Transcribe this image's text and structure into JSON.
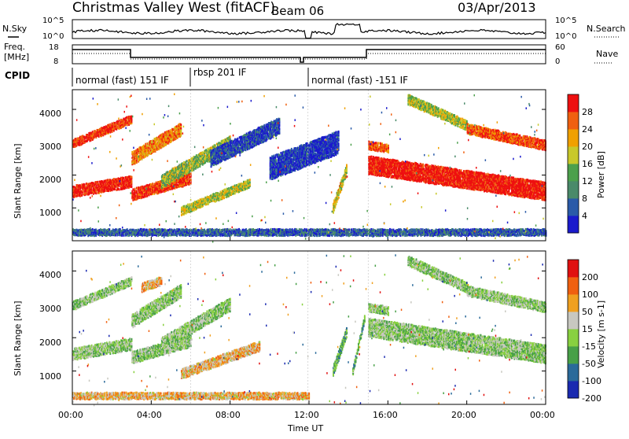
{
  "header": {
    "title": "Christmas Valley West (fitACF)",
    "beam": "Beam 06",
    "date": "03/Apr/2013"
  },
  "strip": {
    "nsky_label": "N.Sky",
    "nsky_tick_top": "10^5",
    "nsky_tick_bottom": "10^0",
    "nsearch_label": "N.Search",
    "freq_label_line1": "Freq.",
    "freq_label_line2": "[MHz]",
    "freq_tick_top": "18",
    "freq_tick_bottom": "8",
    "nave_label": "Nave",
    "nave_tick_top": "60",
    "nave_tick_bottom": "0",
    "cpid_label": "CPID",
    "cpid_segments": [
      {
        "label": "normal (fast) 151 IF",
        "start_hour": 0,
        "end_hour": 6
      },
      {
        "label": "rbsp 201 IF",
        "start_hour": 6,
        "end_hour": 12
      },
      {
        "label": "normal (fast) -151 IF",
        "start_hour": 12,
        "end_hour": 24
      }
    ]
  },
  "chart_data": [
    {
      "type": "heatmap",
      "name": "power-panel",
      "ylabel": "Slant Range [km]",
      "xlim": [
        0,
        24
      ],
      "ylim": [
        0,
        4600
      ],
      "yticks": [
        "1000",
        "2000",
        "3000",
        "4000"
      ],
      "colorbar_label": "Power [dB]",
      "colorbar_ticks": [
        "4",
        "8",
        "12",
        "16",
        "20",
        "24",
        "28"
      ],
      "colors": [
        "#1a1acc",
        "#2a5aa8",
        "#4a8a6a",
        "#4ca04c",
        "#c8c82a",
        "#f0a000",
        "#f06010",
        "#ee1010"
      ],
      "bands": [
        {
          "x": [
            0,
            3
          ],
          "y_start": 2950,
          "y_end": 3700,
          "width": 250,
          "level": 0.9
        },
        {
          "x": [
            0,
            3
          ],
          "y_start": 1500,
          "y_end": 1800,
          "width": 350,
          "level": 0.95
        },
        {
          "x": [
            3,
            5.5
          ],
          "y_start": 2500,
          "y_end": 3400,
          "width": 400,
          "level": 0.75
        },
        {
          "x": [
            3,
            6
          ],
          "y_start": 1400,
          "y_end": 1900,
          "width": 350,
          "level": 0.9
        },
        {
          "x": [
            4.5,
            8
          ],
          "y_start": 1800,
          "y_end": 3000,
          "width": 400,
          "level": 0.5
        },
        {
          "x": [
            5.5,
            9
          ],
          "y_start": 900,
          "y_end": 1750,
          "width": 250,
          "level": 0.55
        },
        {
          "x": [
            7,
            10.5
          ],
          "y_start": 2500,
          "y_end": 3500,
          "width": 500,
          "level": 0.15
        },
        {
          "x": [
            10,
            13.5
          ],
          "y_start": 2200,
          "y_end": 3000,
          "width": 700,
          "level": 0.1
        },
        {
          "x": [
            13.2,
            13.9
          ],
          "y_start": 1000,
          "y_end": 2200,
          "width": 300,
          "level": 0.6
        },
        {
          "x": [
            15,
            24
          ],
          "y_start": 2300,
          "y_end": 1500,
          "width": 550,
          "level": 0.97
        },
        {
          "x": [
            15,
            16
          ],
          "y_start": 2900,
          "y_end": 2800,
          "width": 250,
          "level": 0.85
        },
        {
          "x": [
            17,
            20
          ],
          "y_start": 4300,
          "y_end": 3500,
          "width": 300,
          "level": 0.55
        },
        {
          "x": [
            20,
            24
          ],
          "y_start": 3400,
          "y_end": 2900,
          "width": 300,
          "level": 0.85
        },
        {
          "x": [
            0,
            24
          ],
          "y_start": 250,
          "y_end": 250,
          "width": 200,
          "level": 0.2
        }
      ]
    },
    {
      "type": "heatmap",
      "name": "velocity-panel",
      "ylabel": "Slant Range [km]",
      "xlabel": "Time UT",
      "xlim": [
        0,
        24
      ],
      "ylim": [
        0,
        4600
      ],
      "xticks": [
        "00:00",
        "04:00",
        "08:00",
        "12:00",
        "16:00",
        "20:00",
        "00:00"
      ],
      "yticks": [
        "1000",
        "2000",
        "3000",
        "4000"
      ],
      "colorbar_label": "Velocity [m s-1]",
      "colorbar_ticks": [
        "200",
        "100",
        "50",
        "15",
        "-15",
        "-50",
        "-100",
        "-200"
      ],
      "colors": [
        "#1a2ab0",
        "#2a6a9a",
        "#48a048",
        "#88d040",
        "#c8c8c0",
        "#f0a020",
        "#f06010",
        "#e01010"
      ],
      "bands": [
        {
          "x": [
            0,
            3
          ],
          "y_start": 2950,
          "y_end": 3700,
          "width": 250,
          "level": 0.45
        },
        {
          "x": [
            0,
            3
          ],
          "y_start": 1500,
          "y_end": 1800,
          "width": 350,
          "level": 0.45
        },
        {
          "x": [
            3,
            5.5
          ],
          "y_start": 2500,
          "y_end": 3400,
          "width": 400,
          "level": 0.45
        },
        {
          "x": [
            3,
            6
          ],
          "y_start": 1400,
          "y_end": 1900,
          "width": 350,
          "level": 0.45
        },
        {
          "x": [
            3.5,
            4.5
          ],
          "y_start": 3500,
          "y_end": 3700,
          "width": 250,
          "level": 0.65
        },
        {
          "x": [
            4.5,
            8
          ],
          "y_start": 1800,
          "y_end": 3000,
          "width": 400,
          "level": 0.45
        },
        {
          "x": [
            5.5,
            9.5
          ],
          "y_start": 900,
          "y_end": 1750,
          "width": 300,
          "level": 0.65
        },
        {
          "x": [
            13.2,
            13.9
          ],
          "y_start": 1000,
          "y_end": 2200,
          "width": 300,
          "level": 0.35
        },
        {
          "x": [
            14.2,
            14.8
          ],
          "y_start": 1000,
          "y_end": 2600,
          "width": 200,
          "level": 0.35
        },
        {
          "x": [
            15,
            24
          ],
          "y_start": 2300,
          "y_end": 1500,
          "width": 550,
          "level": 0.45
        },
        {
          "x": [
            15,
            16
          ],
          "y_start": 2900,
          "y_end": 2800,
          "width": 250,
          "level": 0.45
        },
        {
          "x": [
            17,
            20
          ],
          "y_start": 4300,
          "y_end": 3500,
          "width": 300,
          "level": 0.45
        },
        {
          "x": [
            20,
            24
          ],
          "y_start": 3400,
          "y_end": 2900,
          "width": 300,
          "level": 0.45
        },
        {
          "x": [
            0,
            12
          ],
          "y_start": 250,
          "y_end": 250,
          "width": 200,
          "level": 0.65
        }
      ]
    }
  ]
}
